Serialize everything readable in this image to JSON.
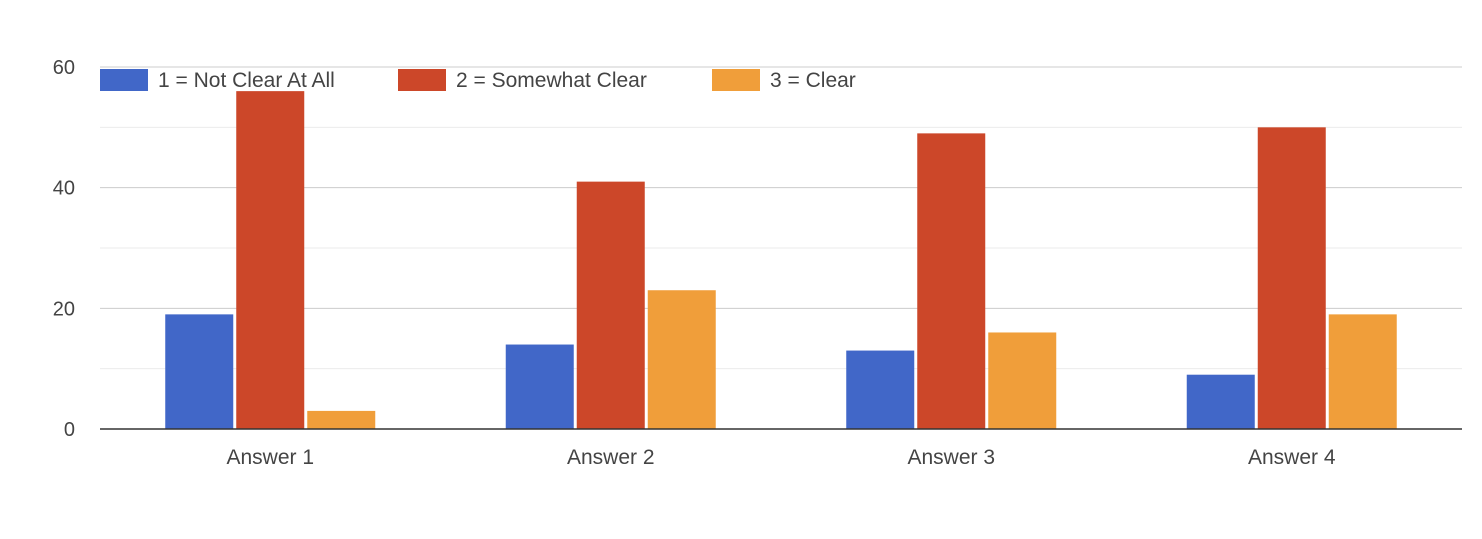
{
  "chart_data": {
    "type": "bar",
    "categories": [
      "Answer 1",
      "Answer 2",
      "Answer 3",
      "Answer 4"
    ],
    "series": [
      {
        "name": "1 = Not Clear At All",
        "color": "#4167C8",
        "values": [
          19,
          14,
          13,
          9
        ]
      },
      {
        "name": "2 = Somewhat Clear",
        "color": "#CC4729",
        "values": [
          56,
          41,
          49,
          50
        ]
      },
      {
        "name": "3 = Clear",
        "color": "#F09E3A",
        "values": [
          3,
          23,
          16,
          19
        ]
      }
    ],
    "title": "",
    "xlabel": "",
    "ylabel": "",
    "ylim": [
      0,
      60
    ],
    "yticks": [
      "0",
      "20",
      "40",
      "60"
    ],
    "ytick_values": [
      0,
      20,
      40,
      60
    ],
    "minor_gridlines": [
      10,
      30,
      50
    ],
    "grid": true,
    "legend_position": "top-left"
  }
}
